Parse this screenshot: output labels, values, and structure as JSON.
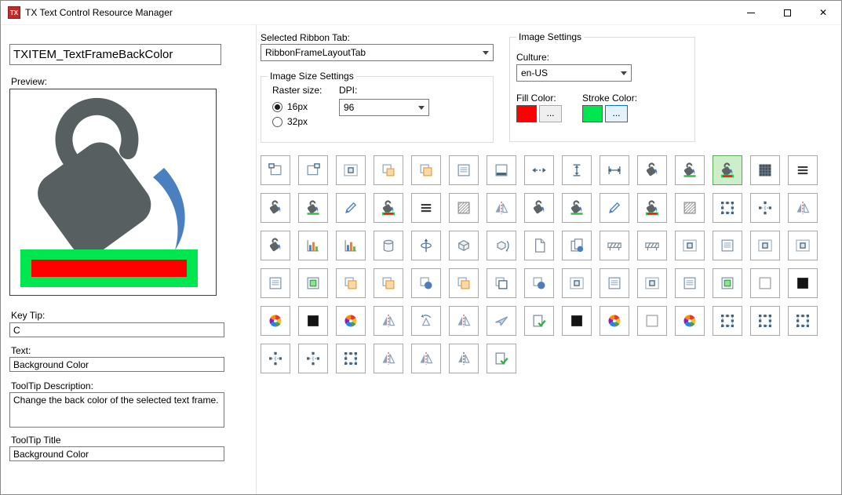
{
  "window": {
    "title": "TX Text Control Resource Manager",
    "app_icon_text": "TX",
    "close_glyph": "✕"
  },
  "left_panel": {
    "item_name": "TXITEM_TextFrameBackColor",
    "preview_label": "Preview:",
    "key_tip_label": "Key Tip:",
    "key_tip": "C",
    "text_label": "Text:",
    "text": "Background Color",
    "tooltip_description_label": "ToolTip Description:",
    "tooltip_description": "Change the back color of the selected text frame.",
    "tooltip_title_label": "ToolTip Title",
    "tooltip_title": "Background Color"
  },
  "ribbon_tab": {
    "label": "Selected Ribbon Tab:",
    "selected": "RibbonFrameLayoutTab"
  },
  "image_size_settings": {
    "group_label": "Image Size Settings",
    "raster_size_label": "Raster size:",
    "raster_options": [
      {
        "label": "16px",
        "selected": true
      },
      {
        "label": "32px",
        "selected": false
      }
    ],
    "dpi_label": "DPI:",
    "dpi": "96"
  },
  "image_settings": {
    "group_label": "Image Settings",
    "culture_label": "Culture:",
    "culture": "en-US",
    "fill_color_label": "Fill Color:",
    "fill_color": "#ff0000",
    "fill_button_label": "...",
    "stroke_color_label": "Stroke Color:",
    "stroke_color": "#00e650",
    "stroke_button_label": "..."
  },
  "preview_image": {
    "bucket_color": "#585f61",
    "pour_color": "#4a7fc0",
    "bar_fill": "#ff0000",
    "bar_stroke": "#00e650"
  },
  "icon_grid": {
    "columns": 15,
    "selected_index": 12,
    "cell_types": [
      "frame_tl",
      "frame_tr",
      "inner_rect",
      "orange_sq",
      "overlap_orange",
      "frame_lines",
      "frame_bottom",
      "dash_arrows",
      "height_bracket",
      "width_arrows",
      "bucket_gray",
      "bucket_green",
      "bucket_color",
      "dark_frame",
      "lines3",
      "bucket_gray",
      "bucket_green",
      "pencil",
      "bucket_color",
      "lines3",
      "hatch",
      "flip_h",
      "bucket_gray",
      "bucket_green",
      "pencil",
      "bucket_color",
      "hatch",
      "sel_frame",
      "sel_frame_dots",
      "flip_h",
      "bucket_gray",
      "chart",
      "chart",
      "cylinder",
      "axis_phi",
      "cube",
      "rotate_axis",
      "page_fold",
      "pages_pin",
      "barrier",
      "barrier",
      "inner_rect",
      "frame_lines",
      "inner_rect",
      "inner_rect",
      "frame_lines",
      "green_frame",
      "overlap_orange",
      "overlap_orange",
      "blue_circle",
      "overlap_orange",
      "overlap_pages",
      "blue_circle",
      "inner_rect",
      "frame_lines",
      "inner_rect",
      "frame_lines",
      "green_frame",
      "white_sq",
      "black_sq",
      "color_wheel",
      "black_sq",
      "color_wheel",
      "flip_h",
      "rotate_tri",
      "flip_h",
      "plane",
      "check_page",
      "black_sq",
      "color_wheel",
      "white_sq",
      "color_wheel",
      "sel_frame",
      "sel_frame",
      "sel_frame",
      "sel_frame_dots",
      "sel_frame_dots",
      "sel_frame",
      "flip_h",
      "flip_h",
      "flip_lines",
      "check_page"
    ],
    "type_names": {
      "frame_tl": "text-frame-icon",
      "frame_tr": "text-frame-right-icon",
      "inner_rect": "inner-frame-icon",
      "orange_sq": "fill-square-icon",
      "overlap_orange": "overlap-squares-icon",
      "frame_lines": "text-in-frame-icon",
      "frame_bottom": "frame-bottom-edge-icon",
      "dash_arrows": "horizontal-spacing-icon",
      "height_bracket": "frame-height-icon",
      "width_arrows": "frame-width-icon",
      "bucket_gray": "back-color-icon",
      "bucket_green": "back-color-accent-icon",
      "bucket_color": "text-frame-back-color-icon",
      "dark_frame": "pattern-fill-icon",
      "lines3": "text-lines-icon",
      "pencil": "edit-pen-icon",
      "hatch": "hatch-fill-icon",
      "flip_h": "flip-horizontal-icon",
      "sel_frame": "selection-handles-icon",
      "sel_frame_dots": "resize-handles-icon",
      "chart": "bar-chart-icon",
      "cylinder": "cylinder-icon",
      "axis_phi": "rotation-axis-icon",
      "cube": "cube-icon",
      "rotate_axis": "rotate-3d-icon",
      "page_fold": "document-icon",
      "pages_pin": "pages-pin-icon",
      "barrier": "fence-icon",
      "green_frame": "green-fill-frame-icon",
      "overlap_pages": "overlap-frames-icon",
      "blue_circle": "circle-shape-icon",
      "white_sq": "no-color-icon",
      "black_sq": "black-color-icon",
      "color_wheel": "color-wheel-icon",
      "plane": "free-rotate-icon",
      "check_page": "apply-icon",
      "flip_lines": "mirror-vertical-icon",
      "rotate_tri": "rotate-left-icon"
    }
  }
}
